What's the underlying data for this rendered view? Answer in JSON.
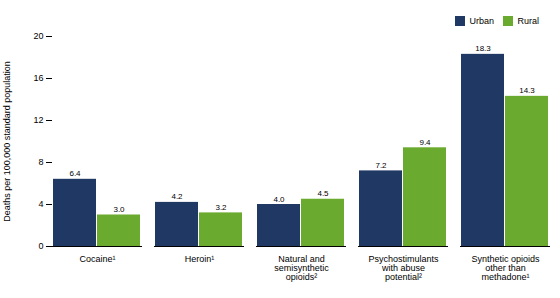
{
  "chart_data": {
    "type": "bar",
    "categories": [
      "Cocaine¹",
      "Heroin¹",
      "Natural and\nsemisynthetic\nopioids²",
      "Psychostimulants\nwith abuse\npotential²",
      "Synthetic opioids\nother than\nmethadone¹"
    ],
    "series": [
      {
        "name": "Urban",
        "color": "#1f3864",
        "values": [
          6.4,
          4.2,
          4.0,
          7.2,
          18.3
        ],
        "value_labels": [
          "6.4",
          "4.2",
          "4.0",
          "7.2",
          "18.3"
        ]
      },
      {
        "name": "Rural",
        "color": "#6aaa2e",
        "values": [
          3.0,
          3.2,
          4.5,
          9.4,
          14.3
        ],
        "value_labels": [
          "3.0",
          "3.2",
          "4.5",
          "9.4",
          "14.3"
        ]
      }
    ],
    "ylabel": "Deaths per 100,000 standard population",
    "ylim": [
      0,
      20
    ],
    "yticks": [
      0,
      4,
      8,
      12,
      16,
      20
    ],
    "grid": false,
    "legend": "upper right",
    "data_labels": true
  }
}
